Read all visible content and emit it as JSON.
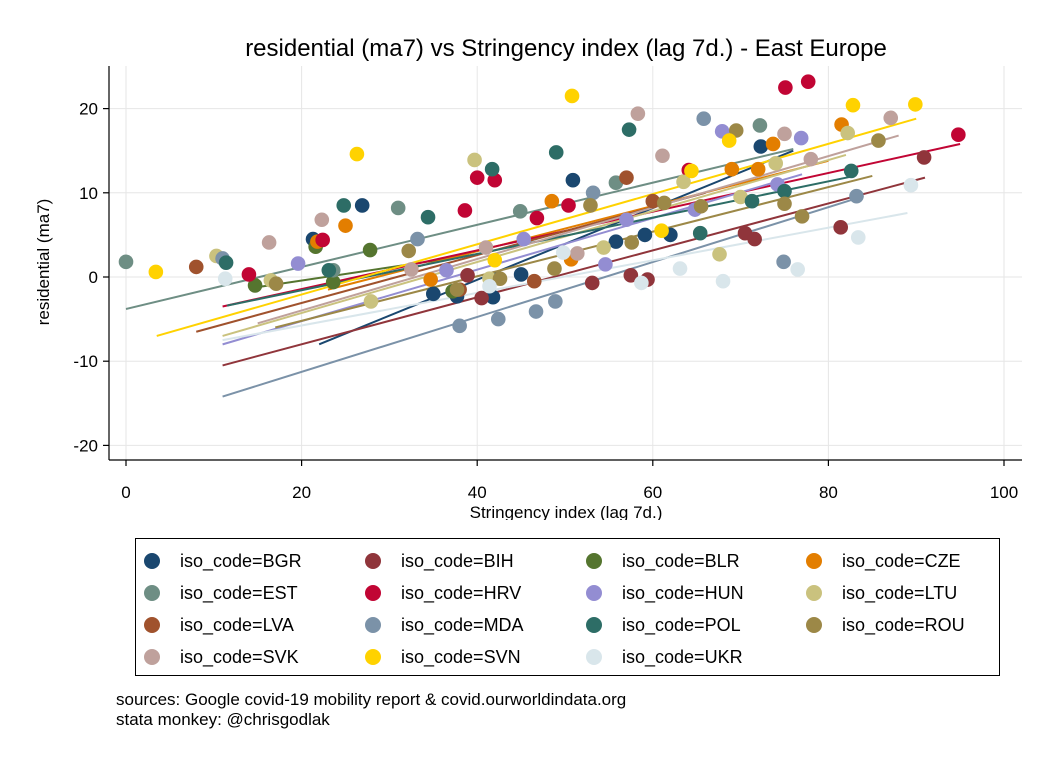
{
  "chart_data": {
    "type": "scatter",
    "title": "residential (ma7) vs Stringency index (lag 7d.) - East Europe",
    "xlabel": "Stringency index (lag 7d.)",
    "ylabel": "residential (ma7)",
    "xlim": [
      0,
      100
    ],
    "ylim": [
      -22,
      25
    ],
    "xticks": [
      0,
      20,
      40,
      60,
      80,
      100
    ],
    "yticks": [
      -20,
      -10,
      0,
      10,
      20
    ],
    "grid": true,
    "legend_position": "bottom",
    "series": [
      {
        "name": "iso_code=BGR",
        "color": "#1a476f",
        "points": [
          [
            21.3,
            4.5
          ],
          [
            26.9,
            8.5
          ],
          [
            35,
            -2
          ],
          [
            37.7,
            -2.3
          ],
          [
            41.8,
            -2.4
          ],
          [
            45,
            0.3
          ],
          [
            50.9,
            11.5
          ],
          [
            55.8,
            4.2
          ],
          [
            59.1,
            5
          ],
          [
            62,
            5
          ],
          [
            72.3,
            15.5
          ]
        ],
        "fit": [
          [
            22,
            -8
          ],
          [
            76,
            15
          ]
        ]
      },
      {
        "name": "iso_code=BIH",
        "color": "#90353b",
        "points": [
          [
            38.9,
            0.2
          ],
          [
            40.5,
            -2.5
          ],
          [
            53.1,
            -0.7
          ],
          [
            57.5,
            0.2
          ],
          [
            59.4,
            -0.3
          ],
          [
            70.5,
            5.2
          ],
          [
            71.6,
            4.5
          ],
          [
            81.4,
            5.9
          ],
          [
            90.9,
            14.2
          ]
        ],
        "fit": [
          [
            11,
            -10.5
          ],
          [
            91,
            11.8
          ]
        ]
      },
      {
        "name": "iso_code=BLR",
        "color": "#55752f",
        "points": [
          [
            14.7,
            -1
          ],
          [
            21.6,
            3.6
          ],
          [
            23.6,
            -0.6
          ],
          [
            27.8,
            3.2
          ],
          [
            37.2,
            -1.7
          ]
        ],
        "fit": [
          [
            15,
            -1.2
          ],
          [
            40,
            2.7
          ]
        ]
      },
      {
        "name": "iso_code=CZE",
        "color": "#e37e00",
        "points": [
          [
            21.8,
            4.2
          ],
          [
            25,
            6.1
          ],
          [
            34.7,
            -0.3
          ],
          [
            48.5,
            9
          ],
          [
            50.7,
            2.1
          ],
          [
            69,
            12.8
          ],
          [
            72,
            12.8
          ],
          [
            73.7,
            15.8
          ],
          [
            81.5,
            18.1
          ]
        ],
        "fit": [
          [
            23,
            -1.5
          ],
          [
            80,
            13.8
          ]
        ]
      },
      {
        "name": "iso_code=EST",
        "color": "#6e8e84",
        "points": [
          [
            0,
            1.8
          ],
          [
            23.6,
            0.8
          ],
          [
            31,
            8.2
          ],
          [
            44.9,
            7.8
          ],
          [
            55.8,
            11.2
          ],
          [
            72.2,
            18
          ]
        ],
        "fit": [
          [
            0,
            -3.8
          ],
          [
            76,
            15.2
          ]
        ]
      },
      {
        "name": "iso_code=HRV",
        "color": "#c10534",
        "points": [
          [
            14,
            0.3
          ],
          [
            22.4,
            4.4
          ],
          [
            38.6,
            7.9
          ],
          [
            40,
            11.8
          ],
          [
            42,
            11.5
          ],
          [
            46.8,
            7
          ],
          [
            50.4,
            8.5
          ],
          [
            64.1,
            12.7
          ],
          [
            75.1,
            22.5
          ],
          [
            77.7,
            23.2
          ],
          [
            94.8,
            16.9
          ]
        ],
        "fit": [
          [
            11,
            -3.5
          ],
          [
            95,
            15.8
          ]
        ]
      },
      {
        "name": "iso_code=HUN",
        "color": "#938dd2",
        "points": [
          [
            19.6,
            1.6
          ],
          [
            36.5,
            0.8
          ],
          [
            45.3,
            4.5
          ],
          [
            54.6,
            1.5
          ],
          [
            57,
            6.8
          ],
          [
            64.8,
            8
          ],
          [
            67.9,
            17.3
          ],
          [
            74.2,
            11
          ],
          [
            76.9,
            16.5
          ]
        ],
        "fit": [
          [
            11,
            -8
          ],
          [
            77,
            12.2
          ]
        ]
      },
      {
        "name": "iso_code=LTU",
        "color": "#cac27e",
        "points": [
          [
            10.3,
            2.5
          ],
          [
            16.5,
            -0.4
          ],
          [
            27.9,
            -2.9
          ],
          [
            39.7,
            13.9
          ],
          [
            41.4,
            -0.2
          ],
          [
            54.4,
            3.5
          ],
          [
            63.5,
            11.3
          ],
          [
            67.6,
            2.7
          ],
          [
            70,
            9.5
          ],
          [
            74,
            13.5
          ],
          [
            82.2,
            17.1
          ]
        ],
        "fit": [
          [
            11,
            -7
          ],
          [
            82,
            14.5
          ]
        ]
      },
      {
        "name": "iso_code=LVA",
        "color": "#a0522d",
        "points": [
          [
            8,
            1.2
          ],
          [
            38,
            -1.5
          ],
          [
            46.5,
            -0.5
          ],
          [
            57,
            11.8
          ],
          [
            60,
            9
          ]
        ],
        "fit": [
          [
            8,
            -6.5
          ],
          [
            66,
            10
          ]
        ]
      },
      {
        "name": "iso_code=MDA",
        "color": "#7b92a8",
        "points": [
          [
            11,
            2.2
          ],
          [
            33.2,
            4.5
          ],
          [
            38,
            -5.8
          ],
          [
            42.4,
            -5
          ],
          [
            46.7,
            -4.1
          ],
          [
            48.9,
            -2.9
          ],
          [
            53.2,
            10
          ],
          [
            65.8,
            18.8
          ],
          [
            74.9,
            1.8
          ],
          [
            83.2,
            9.6
          ]
        ],
        "fit": [
          [
            11,
            -14.2
          ],
          [
            84,
            9.6
          ]
        ]
      },
      {
        "name": "iso_code=POL",
        "color": "#2d6d66",
        "points": [
          [
            11.4,
            1.7
          ],
          [
            23.1,
            0.8
          ],
          [
            24.8,
            8.5
          ],
          [
            34.4,
            7.1
          ],
          [
            41.7,
            12.8
          ],
          [
            49,
            14.8
          ],
          [
            57.3,
            17.5
          ],
          [
            65.4,
            5.2
          ],
          [
            71.3,
            9
          ],
          [
            75,
            10.2
          ],
          [
            82.6,
            12.6
          ]
        ],
        "fit": [
          [
            11.5,
            -3.4
          ],
          [
            82.5,
            11.9
          ]
        ]
      },
      {
        "name": "iso_code=ROU",
        "color": "#9c8847",
        "points": [
          [
            17.1,
            -0.8
          ],
          [
            32.2,
            3.1
          ],
          [
            37.7,
            -1.5
          ],
          [
            42.6,
            -0.2
          ],
          [
            48.8,
            1
          ],
          [
            52.9,
            8.5
          ],
          [
            57.6,
            4.1
          ],
          [
            61.3,
            8.8
          ],
          [
            65.5,
            8.4
          ],
          [
            69.5,
            17.4
          ],
          [
            75,
            8.7
          ],
          [
            77,
            7.2
          ],
          [
            85.7,
            16.2
          ]
        ],
        "fit": [
          [
            17,
            -6
          ],
          [
            85,
            12
          ]
        ]
      },
      {
        "name": "iso_code=SVK",
        "color": "#bfa19c",
        "points": [
          [
            16.3,
            4.1
          ],
          [
            22.3,
            6.8
          ],
          [
            32.5,
            0.9
          ],
          [
            41,
            3.5
          ],
          [
            51.4,
            2.8
          ],
          [
            58.3,
            19.4
          ],
          [
            61.1,
            14.4
          ],
          [
            75,
            17
          ],
          [
            78,
            14
          ],
          [
            87.1,
            18.9
          ]
        ],
        "fit": [
          [
            15,
            -5.5
          ],
          [
            88,
            16.8
          ]
        ]
      },
      {
        "name": "iso_code=SVN",
        "color": "#ffd200",
        "points": [
          [
            3.4,
            0.6
          ],
          [
            26.3,
            14.6
          ],
          [
            42,
            2
          ],
          [
            50.8,
            21.5
          ],
          [
            61,
            5.5
          ],
          [
            64.4,
            12.6
          ],
          [
            68.7,
            16.2
          ],
          [
            82.8,
            20.4
          ],
          [
            89.9,
            20.5
          ]
        ],
        "fit": [
          [
            3.5,
            -7
          ],
          [
            90,
            18.8
          ]
        ]
      },
      {
        "name": "iso_code=UKR",
        "color": "#d9e6eb",
        "points": [
          [
            11.3,
            -0.2
          ],
          [
            41.4,
            -1.1
          ],
          [
            49.8,
            2.9
          ],
          [
            58.7,
            -0.7
          ],
          [
            63.1,
            1
          ],
          [
            68,
            -0.5
          ],
          [
            76.5,
            0.9
          ],
          [
            83.4,
            4.7
          ],
          [
            89.4,
            10.9
          ]
        ],
        "fit": [
          [
            11,
            -7.5
          ],
          [
            89,
            7.6
          ]
        ]
      }
    ]
  },
  "footnotes": {
    "line1": "sources: Google covid-19 mobility report & covid.ourworldindata.org",
    "line2": "stata monkey: @chrisgodlak"
  }
}
